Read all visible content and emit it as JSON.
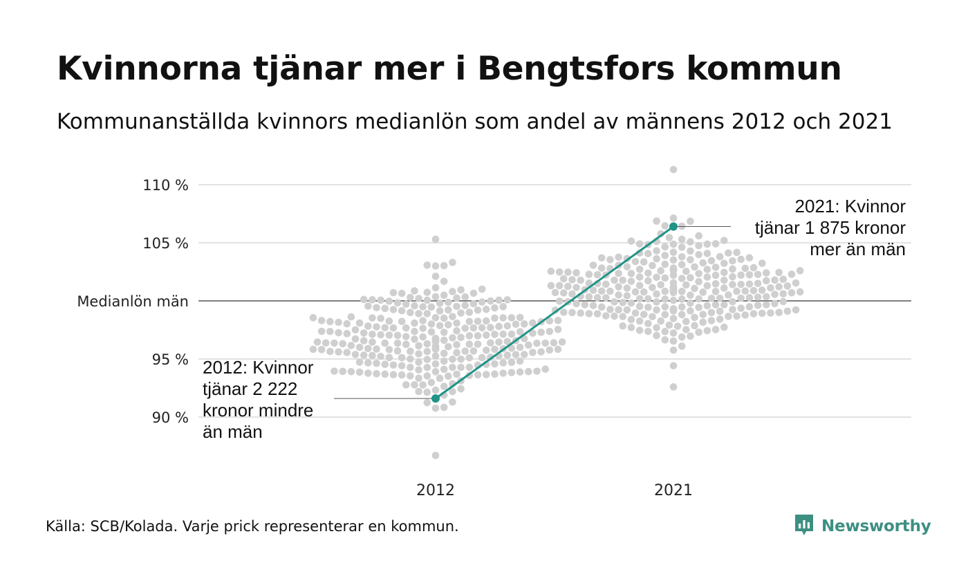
{
  "title": "Kvinnorna tjänar mer i Bengtsfors kommun",
  "subtitle": "Kommunanställda kvinnors medianlön som andel av männens 2012 och 2021",
  "source": "Källa: SCB/Kolada. Varje prick representerar en kommun.",
  "brand": {
    "name": "Newsworthy",
    "icon": "bar-chart-logo-icon",
    "color": "#3d8f82"
  },
  "colors": {
    "highlight": "#1f9487",
    "dots": "#cfcfcf",
    "grid": "#e2e2e2",
    "reference": "#333333"
  },
  "chart_data": {
    "type": "scatter",
    "x": [
      "2012",
      "2021"
    ],
    "ylim": [
      86,
      112
    ],
    "y_ticks": [
      {
        "value": 110,
        "label": "110 %"
      },
      {
        "value": 105,
        "label": "105 %"
      },
      {
        "value": 100,
        "label": "Medianlön män"
      },
      {
        "value": 95,
        "label": "95 %"
      },
      {
        "value": 90,
        "label": "90 %"
      }
    ],
    "reference_line": 100,
    "grid": true,
    "distribution": [
      {
        "x": "2012",
        "mean": 96.5,
        "sd": 2.4,
        "min": 86.7,
        "max": 105.3,
        "count": 290
      },
      {
        "x": "2021",
        "mean": 101.0,
        "sd": 2.3,
        "min": 92.6,
        "max": 111.3,
        "count": 290
      }
    ],
    "highlight": {
      "name": "Bengtsfors",
      "values": [
        {
          "x": "2012",
          "y": 91.6
        },
        {
          "x": "2021",
          "y": 106.4
        }
      ]
    },
    "annotations": [
      {
        "x": "2012",
        "lines": [
          "2012: Kvinnor",
          "tjänar 2 222",
          "kronor mindre",
          "än män"
        ]
      },
      {
        "x": "2021",
        "lines": [
          "2021: Kvinnor",
          "tjänar 1 875 kronor",
          "mer än män"
        ]
      }
    ]
  }
}
